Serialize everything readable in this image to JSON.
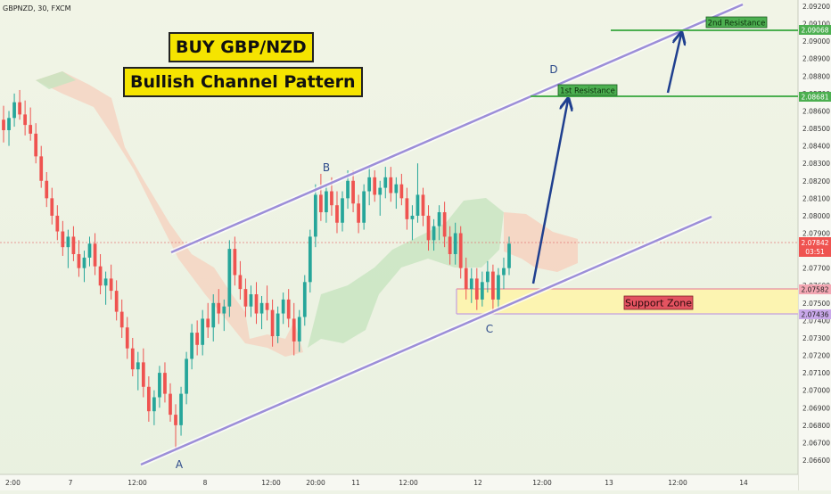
{
  "header": {
    "symbol_line": "GBPNZD, 30, FXCM"
  },
  "banners": {
    "title": "BUY GBP/NZD",
    "subtitle": "Bullish Channel Pattern"
  },
  "annotations": {
    "point_a": "A",
    "point_b": "B",
    "point_c": "C",
    "point_d": "D",
    "support_zone": "Support Zone",
    "resistance_1": "1st Resistance",
    "resistance_2": "2nd Resistance"
  },
  "price_labels": {
    "resistance_2": "2.09068",
    "resistance_1": "2.08681",
    "current": "2.07842",
    "countdown": "03:51",
    "support_top": "2.07582",
    "support_bottom": "2.07436"
  },
  "colors": {
    "background": "#eef3e6",
    "up_candle": "#26a69a",
    "down_candle": "#ef5350",
    "channel": "#9c8ed8",
    "resistance": "#4caf50",
    "arrow": "#1f3f8f",
    "support_fill": "#fff5a8",
    "support_label": "#e35360",
    "cloud_bull": "#c7e3bf",
    "cloud_bear": "#f6d0bd",
    "banner": "#f5e400"
  },
  "chart_data": {
    "type": "candlestick",
    "symbol": "GBPNZD",
    "timeframe": "30",
    "source": "FXCM",
    "y_ticks": [
      "2.09200",
      "2.09100",
      "2.09000",
      "2.08900",
      "2.08800",
      "2.08700",
      "2.08600",
      "2.08500",
      "2.08400",
      "2.08300",
      "2.08200",
      "2.08100",
      "2.08000",
      "2.07900",
      "2.07800",
      "2.07700",
      "2.07600",
      "2.07500",
      "2.07400",
      "2.07300",
      "2.07200",
      "2.07100",
      "2.07000",
      "2.06900",
      "2.06800",
      "2.06700",
      "2.06600"
    ],
    "x_ticks": [
      "2:00",
      "7",
      "12:00",
      "8",
      "12:00",
      "20:00",
      "11",
      "12:00",
      "12",
      "12:00",
      "13",
      "12:00",
      "14"
    ],
    "ylim": [
      2.0655,
      2.0925
    ],
    "levels": {
      "second_resistance": 2.09068,
      "first_resistance": 2.08681,
      "current_price": 2.07842,
      "support_top": 2.07582,
      "support_bottom": 2.07436
    },
    "pivots": {
      "A": 2.0665,
      "B": 2.0822,
      "C": 2.0744
    },
    "candles_ohlc": [
      [
        2.0855,
        2.0863,
        2.0842,
        2.0849
      ],
      [
        2.0849,
        2.086,
        2.084,
        2.0856
      ],
      [
        2.0856,
        2.087,
        2.0851,
        2.0865
      ],
      [
        2.0865,
        2.0872,
        2.0855,
        2.0858
      ],
      [
        2.0858,
        2.0866,
        2.0846,
        2.0852
      ],
      [
        2.0852,
        2.0862,
        2.0843,
        2.0847
      ],
      [
        2.0847,
        2.0853,
        2.083,
        2.0834
      ],
      [
        2.0834,
        2.084,
        2.0816,
        2.082
      ],
      [
        2.082,
        2.0825,
        2.0805,
        2.081
      ],
      [
        2.081,
        2.0816,
        2.0795,
        2.08
      ],
      [
        2.08,
        2.0806,
        2.0786,
        2.0791
      ],
      [
        2.0791,
        2.0797,
        2.0777,
        2.0782
      ],
      [
        2.0782,
        2.0792,
        2.077,
        2.0788
      ],
      [
        2.0788,
        2.0794,
        2.0774,
        2.0778
      ],
      [
        2.0778,
        2.0786,
        2.0765,
        2.077
      ],
      [
        2.077,
        2.078,
        2.0762,
        2.0776
      ],
      [
        2.0776,
        2.0788,
        2.0771,
        2.0784
      ],
      [
        2.0784,
        2.079,
        2.0766,
        2.0771
      ],
      [
        2.0771,
        2.0778,
        2.0755,
        2.076
      ],
      [
        2.076,
        2.0768,
        2.0749,
        2.0764
      ],
      [
        2.0764,
        2.0772,
        2.0752,
        2.0757
      ],
      [
        2.0757,
        2.0763,
        2.074,
        2.0745
      ],
      [
        2.0745,
        2.0752,
        2.073,
        2.0736
      ],
      [
        2.0736,
        2.0742,
        2.0718,
        2.0724
      ],
      [
        2.0724,
        2.073,
        2.0708,
        2.0712
      ],
      [
        2.0712,
        2.0722,
        2.07,
        2.0716
      ],
      [
        2.0716,
        2.0724,
        2.0696,
        2.0702
      ],
      [
        2.0702,
        2.0708,
        2.0682,
        2.0688
      ],
      [
        2.0688,
        2.07,
        2.068,
        2.0696
      ],
      [
        2.0696,
        2.0714,
        2.069,
        2.071
      ],
      [
        2.071,
        2.0716,
        2.0693,
        2.0698
      ],
      [
        2.0698,
        2.0704,
        2.0682,
        2.0686
      ],
      [
        2.0686,
        2.0692,
        2.0666,
        2.068
      ],
      [
        2.068,
        2.0702,
        2.0674,
        2.0698
      ],
      [
        2.0698,
        2.0722,
        2.0692,
        2.0718
      ],
      [
        2.0718,
        2.0738,
        2.0712,
        2.0733
      ],
      [
        2.0733,
        2.074,
        2.072,
        2.0726
      ],
      [
        2.0726,
        2.0746,
        2.072,
        2.0741
      ],
      [
        2.0741,
        2.075,
        2.073,
        2.0736
      ],
      [
        2.0736,
        2.0755,
        2.0728,
        2.075
      ],
      [
        2.075,
        2.0758,
        2.0738,
        2.0744
      ],
      [
        2.0744,
        2.0752,
        2.0734,
        2.0748
      ],
      [
        2.0748,
        2.0786,
        2.0742,
        2.0781
      ],
      [
        2.0781,
        2.0788,
        2.076,
        2.0766
      ],
      [
        2.0766,
        2.0774,
        2.0752,
        2.0758
      ],
      [
        2.0758,
        2.0764,
        2.0742,
        2.0748
      ],
      [
        2.0748,
        2.076,
        2.0742,
        2.0755
      ],
      [
        2.0755,
        2.0762,
        2.0738,
        2.0744
      ],
      [
        2.0744,
        2.0754,
        2.0735,
        2.075
      ],
      [
        2.075,
        2.076,
        2.074,
        2.0746
      ],
      [
        2.0746,
        2.0752,
        2.0725,
        2.0731
      ],
      [
        2.0731,
        2.0748,
        2.0727,
        2.0744
      ],
      [
        2.0744,
        2.0756,
        2.0738,
        2.0752
      ],
      [
        2.0752,
        2.0758,
        2.0736,
        2.0741
      ],
      [
        2.0741,
        2.075,
        2.072,
        2.0728
      ],
      [
        2.0728,
        2.0746,
        2.0722,
        2.0742
      ],
      [
        2.0742,
        2.0766,
        2.0737,
        2.0762
      ],
      [
        2.0762,
        2.0792,
        2.0756,
        2.0788
      ],
      [
        2.0788,
        2.0818,
        2.0782,
        2.0812
      ],
      [
        2.0812,
        2.0824,
        2.0797,
        2.0802
      ],
      [
        2.0802,
        2.0818,
        2.0796,
        2.0814
      ],
      [
        2.0814,
        2.0822,
        2.08,
        2.0806
      ],
      [
        2.0806,
        2.0814,
        2.079,
        2.0796
      ],
      [
        2.0796,
        2.0814,
        2.0791,
        2.081
      ],
      [
        2.081,
        2.0826,
        2.0804,
        2.082
      ],
      [
        2.082,
        2.0826,
        2.0802,
        2.0807
      ],
      [
        2.0807,
        2.0812,
        2.079,
        2.0796
      ],
      [
        2.0796,
        2.0818,
        2.0792,
        2.0814
      ],
      [
        2.0814,
        2.0828,
        2.0806,
        2.0822
      ],
      [
        2.0822,
        2.0826,
        2.0808,
        2.0812
      ],
      [
        2.0812,
        2.082,
        2.08,
        2.0816
      ],
      [
        2.0816,
        2.0828,
        2.081,
        2.0822
      ],
      [
        2.0822,
        2.0828,
        2.0808,
        2.0813
      ],
      [
        2.0813,
        2.0822,
        2.0804,
        2.0818
      ],
      [
        2.0818,
        2.0824,
        2.0806,
        2.081
      ],
      [
        2.081,
        2.0816,
        2.0792,
        2.0798
      ],
      [
        2.0798,
        2.0806,
        2.0786,
        2.08
      ],
      [
        2.08,
        2.083,
        2.0796,
        2.0812
      ],
      [
        2.0812,
        2.0816,
        2.0794,
        2.08
      ],
      [
        2.08,
        2.0806,
        2.078,
        2.0786
      ],
      [
        2.0786,
        2.0798,
        2.078,
        2.0794
      ],
      [
        2.0794,
        2.0806,
        2.0786,
        2.0802
      ],
      [
        2.0802,
        2.0808,
        2.0782,
        2.0788
      ],
      [
        2.0788,
        2.0794,
        2.0772,
        2.0778
      ],
      [
        2.0778,
        2.0796,
        2.0772,
        2.079
      ],
      [
        2.079,
        2.0794,
        2.0764,
        2.077
      ],
      [
        2.077,
        2.0776,
        2.0752,
        2.0758
      ],
      [
        2.0758,
        2.077,
        2.075,
        2.0764
      ],
      [
        2.0764,
        2.077,
        2.0746,
        2.0752
      ],
      [
        2.0752,
        2.0768,
        2.0748,
        2.0762
      ],
      [
        2.0762,
        2.0774,
        2.0756,
        2.0768
      ],
      [
        2.0768,
        2.0772,
        2.0744,
        2.0752
      ],
      [
        2.0752,
        2.077,
        2.0746,
        2.0766
      ],
      [
        2.0766,
        2.0776,
        2.0758,
        2.077
      ],
      [
        2.077,
        2.0788,
        2.0766,
        2.0784
      ]
    ]
  }
}
